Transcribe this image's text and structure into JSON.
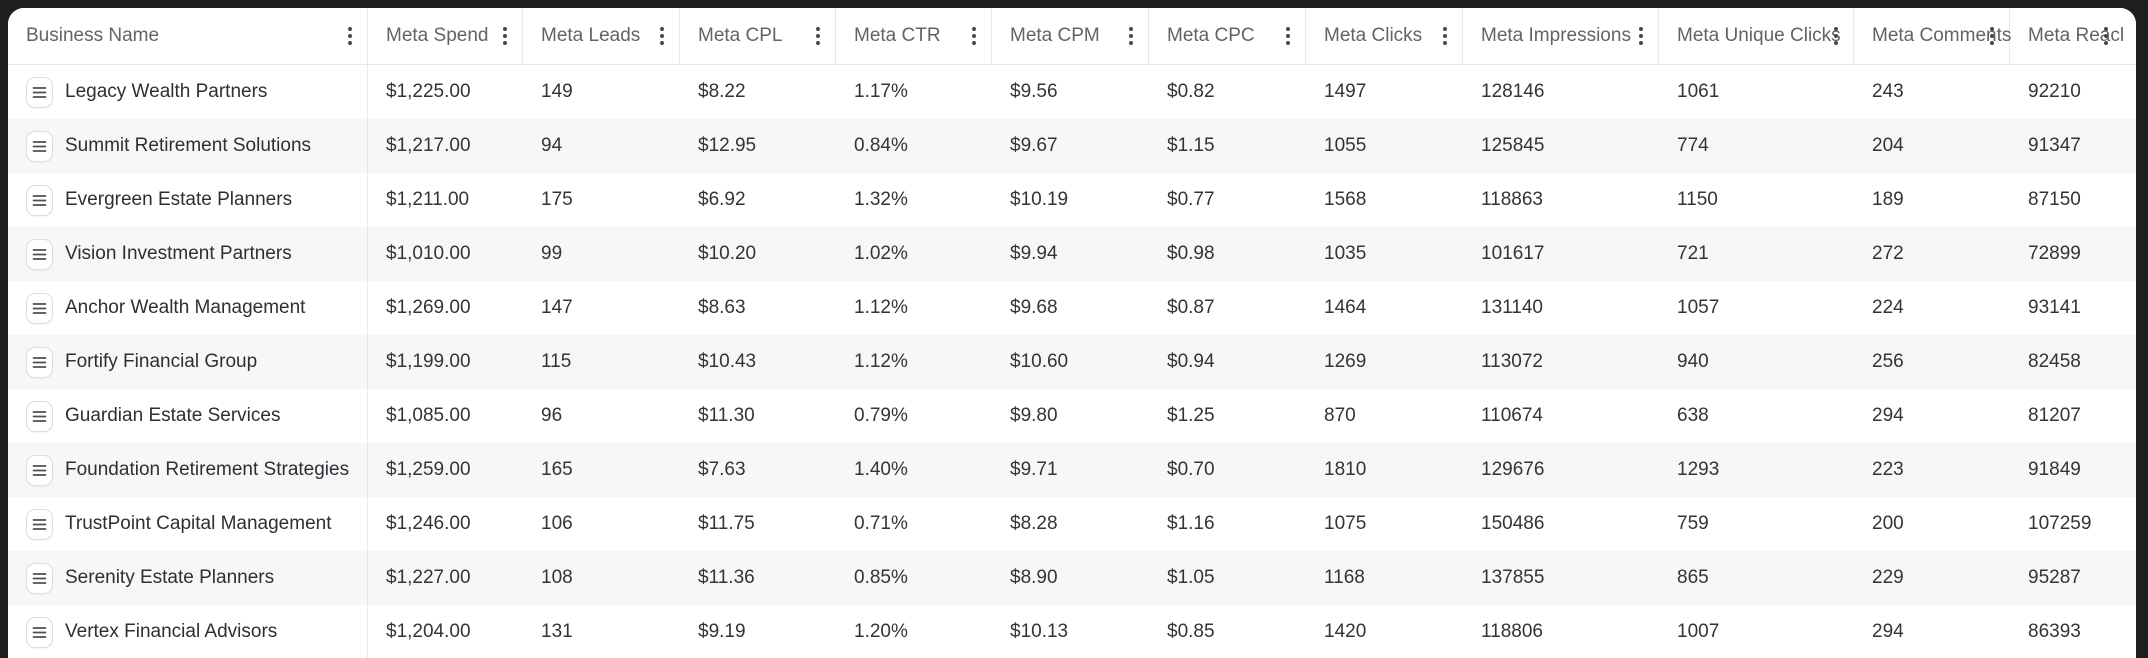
{
  "table": {
    "columns": [
      {
        "id": "business_name",
        "label": "Business Name"
      },
      {
        "id": "meta_spend",
        "label": "Meta Spend"
      },
      {
        "id": "meta_leads",
        "label": "Meta Leads"
      },
      {
        "id": "meta_cpl",
        "label": "Meta CPL"
      },
      {
        "id": "meta_ctr",
        "label": "Meta CTR"
      },
      {
        "id": "meta_cpm",
        "label": "Meta CPM"
      },
      {
        "id": "meta_cpc",
        "label": "Meta CPC"
      },
      {
        "id": "meta_clicks",
        "label": "Meta Clicks"
      },
      {
        "id": "meta_impressions",
        "label": "Meta Impressions"
      },
      {
        "id": "meta_unique_clicks",
        "label": "Meta Unique Clicks"
      },
      {
        "id": "meta_comments",
        "label": "Meta Comments"
      },
      {
        "id": "meta_reach",
        "label": "Meta Reach"
      }
    ],
    "rows": [
      {
        "business_name": "Legacy Wealth Partners",
        "meta_spend": "$1,225.00",
        "meta_leads": "149",
        "meta_cpl": "$8.22",
        "meta_ctr": "1.17%",
        "meta_cpm": "$9.56",
        "meta_cpc": "$0.82",
        "meta_clicks": "1497",
        "meta_impressions": "128146",
        "meta_unique_clicks": "1061",
        "meta_comments": "243",
        "meta_reach": "92210"
      },
      {
        "business_name": "Summit Retirement Solutions",
        "meta_spend": "$1,217.00",
        "meta_leads": "94",
        "meta_cpl": "$12.95",
        "meta_ctr": "0.84%",
        "meta_cpm": "$9.67",
        "meta_cpc": "$1.15",
        "meta_clicks": "1055",
        "meta_impressions": "125845",
        "meta_unique_clicks": "774",
        "meta_comments": "204",
        "meta_reach": "91347"
      },
      {
        "business_name": "Evergreen Estate Planners",
        "meta_spend": "$1,211.00",
        "meta_leads": "175",
        "meta_cpl": "$6.92",
        "meta_ctr": "1.32%",
        "meta_cpm": "$10.19",
        "meta_cpc": "$0.77",
        "meta_clicks": "1568",
        "meta_impressions": "118863",
        "meta_unique_clicks": "1150",
        "meta_comments": "189",
        "meta_reach": "87150"
      },
      {
        "business_name": "Vision Investment Partners",
        "meta_spend": "$1,010.00",
        "meta_leads": "99",
        "meta_cpl": "$10.20",
        "meta_ctr": "1.02%",
        "meta_cpm": "$9.94",
        "meta_cpc": "$0.98",
        "meta_clicks": "1035",
        "meta_impressions": "101617",
        "meta_unique_clicks": "721",
        "meta_comments": "272",
        "meta_reach": "72899"
      },
      {
        "business_name": "Anchor Wealth Management",
        "meta_spend": "$1,269.00",
        "meta_leads": "147",
        "meta_cpl": "$8.63",
        "meta_ctr": "1.12%",
        "meta_cpm": "$9.68",
        "meta_cpc": "$0.87",
        "meta_clicks": "1464",
        "meta_impressions": "131140",
        "meta_unique_clicks": "1057",
        "meta_comments": "224",
        "meta_reach": "93141"
      },
      {
        "business_name": "Fortify Financial Group",
        "meta_spend": "$1,199.00",
        "meta_leads": "115",
        "meta_cpl": "$10.43",
        "meta_ctr": "1.12%",
        "meta_cpm": "$10.60",
        "meta_cpc": "$0.94",
        "meta_clicks": "1269",
        "meta_impressions": "113072",
        "meta_unique_clicks": "940",
        "meta_comments": "256",
        "meta_reach": "82458"
      },
      {
        "business_name": "Guardian Estate Services",
        "meta_spend": "$1,085.00",
        "meta_leads": "96",
        "meta_cpl": "$11.30",
        "meta_ctr": "0.79%",
        "meta_cpm": "$9.80",
        "meta_cpc": "$1.25",
        "meta_clicks": "870",
        "meta_impressions": "110674",
        "meta_unique_clicks": "638",
        "meta_comments": "294",
        "meta_reach": "81207"
      },
      {
        "business_name": "Foundation Retirement Strategies",
        "meta_spend": "$1,259.00",
        "meta_leads": "165",
        "meta_cpl": "$7.63",
        "meta_ctr": "1.40%",
        "meta_cpm": "$9.71",
        "meta_cpc": "$0.70",
        "meta_clicks": "1810",
        "meta_impressions": "129676",
        "meta_unique_clicks": "1293",
        "meta_comments": "223",
        "meta_reach": "91849"
      },
      {
        "business_name": "TrustPoint Capital Management",
        "meta_spend": "$1,246.00",
        "meta_leads": "106",
        "meta_cpl": "$11.75",
        "meta_ctr": "0.71%",
        "meta_cpm": "$8.28",
        "meta_cpc": "$1.16",
        "meta_clicks": "1075",
        "meta_impressions": "150486",
        "meta_unique_clicks": "759",
        "meta_comments": "200",
        "meta_reach": "107259"
      },
      {
        "business_name": "Serenity Estate Planners",
        "meta_spend": "$1,227.00",
        "meta_leads": "108",
        "meta_cpl": "$11.36",
        "meta_ctr": "0.85%",
        "meta_cpm": "$8.90",
        "meta_cpc": "$1.05",
        "meta_clicks": "1168",
        "meta_impressions": "137855",
        "meta_unique_clicks": "865",
        "meta_comments": "229",
        "meta_reach": "95287"
      },
      {
        "business_name": "Vertex Financial Advisors",
        "meta_spend": "$1,204.00",
        "meta_leads": "131",
        "meta_cpl": "$9.19",
        "meta_ctr": "1.20%",
        "meta_cpm": "$10.13",
        "meta_cpc": "$0.85",
        "meta_clicks": "1420",
        "meta_impressions": "118806",
        "meta_unique_clicks": "1007",
        "meta_comments": "294",
        "meta_reach": "86393"
      }
    ]
  },
  "icons": {
    "column_menu": "kebab-vertical-icon",
    "row_handle": "drag-handle-hamburger-icon"
  },
  "colors": {
    "frame_background": "#1e1e20",
    "sheet_background": "#ffffff",
    "row_stripe": "#f7f7f8",
    "separator": "#e8e8ec",
    "header_text": "#62626b",
    "body_text": "#33333a"
  }
}
